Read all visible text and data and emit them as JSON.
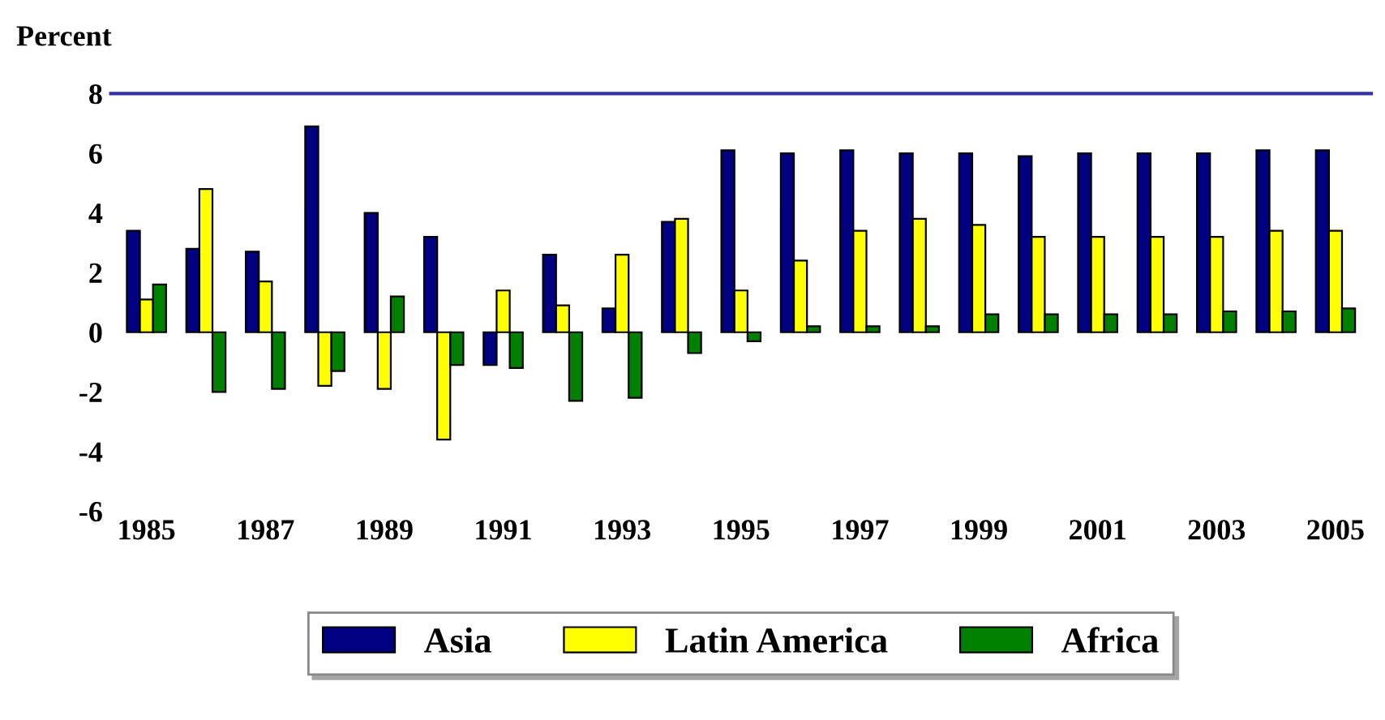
{
  "chart_data": {
    "type": "bar",
    "ylabel": "Percent",
    "categories": [
      "1985",
      null,
      "1987",
      null,
      "1989",
      null,
      "1991",
      null,
      "1993",
      null,
      "1995",
      null,
      "1997",
      null,
      "1999",
      null,
      "2001",
      null,
      "2003",
      null,
      "2005"
    ],
    "series": [
      {
        "name": "Asia",
        "color": "#000080",
        "values": [
          3.4,
          2.8,
          2.7,
          6.9,
          4.0,
          3.2,
          -1.1,
          2.6,
          0.8,
          3.7,
          6.1,
          6.0,
          6.1,
          6.0,
          6.0,
          5.9,
          6.0,
          6.0,
          6.0,
          6.1,
          6.1
        ]
      },
      {
        "name": "Latin America",
        "color": "#ffff00",
        "values": [
          1.1,
          4.8,
          1.7,
          -1.8,
          -1.9,
          -3.6,
          1.4,
          0.9,
          2.6,
          3.8,
          1.4,
          2.4,
          3.4,
          3.8,
          3.6,
          3.2,
          3.2,
          3.2,
          3.2,
          3.4,
          3.4
        ]
      },
      {
        "name": "Africa",
        "color": "#008000",
        "values": [
          1.6,
          -2.0,
          -1.9,
          -1.3,
          1.2,
          -1.1,
          -1.2,
          -2.3,
          -2.2,
          -0.7,
          -0.3,
          0.2,
          0.2,
          0.2,
          0.6,
          0.6,
          0.6,
          0.6,
          0.7,
          0.7,
          0.8
        ]
      }
    ],
    "ylim": [
      -6,
      8
    ],
    "yticks": [
      -6,
      -4,
      -2,
      0,
      2,
      4,
      6,
      8
    ],
    "grid": false,
    "legend": "bottom"
  }
}
